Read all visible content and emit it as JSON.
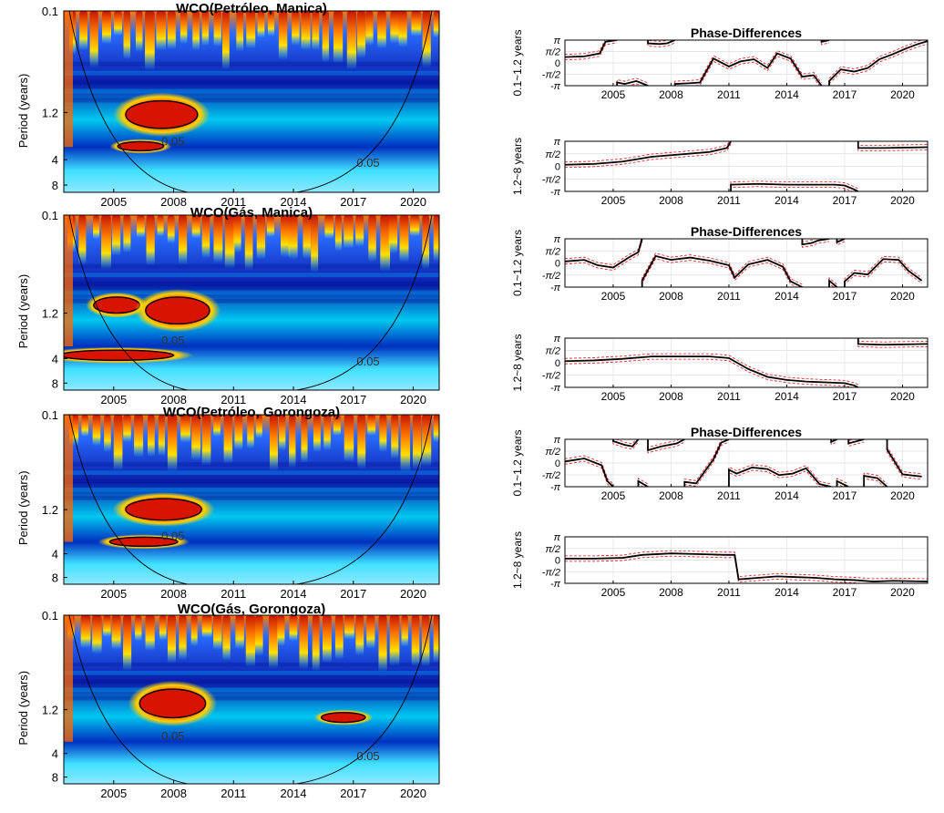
{
  "colors": {
    "wavelet_low": "#00008f",
    "wavelet_mid": "#00b0ff",
    "wavelet_warm": "#ffd400",
    "wavelet_high": "#d81400",
    "phase_line": "#000000",
    "phase_band": "#e01010",
    "cone": "#000000"
  },
  "wco_panels": [
    {
      "title": "WCO(Petróleo, Manica)",
      "ylabel": "Period (years)",
      "yticks": [
        "0.1",
        "1.2",
        "4",
        "8"
      ],
      "xticks": [
        "2005",
        "2008",
        "2011",
        "2014",
        "2017",
        "2020"
      ],
      "contour_labels": [
        "0.05",
        "0.05"
      ],
      "hot_regions": [
        {
          "x": [
            2005.6,
            2009.2
          ],
          "period": [
            0.9,
            1.8
          ]
        },
        {
          "x": [
            2005.2,
            2007.5
          ],
          "period": [
            2.6,
            3.1
          ]
        }
      ]
    },
    {
      "title": "WCO(Gás, Manica)",
      "ylabel": "Period (years)",
      "yticks": [
        "0.1",
        "1.2",
        "4",
        "8"
      ],
      "xticks": [
        "2005",
        "2008",
        "2011",
        "2014",
        "2017",
        "2020"
      ],
      "contour_labels": [
        "0.05",
        "0.05"
      ],
      "hot_regions": [
        {
          "x": [
            2004.0,
            2006.3
          ],
          "period": [
            0.8,
            1.2
          ]
        },
        {
          "x": [
            2006.6,
            2009.8
          ],
          "period": [
            0.8,
            1.6
          ]
        },
        {
          "x": [
            2002.3,
            2008.0
          ],
          "period": [
            3.2,
            4.2
          ]
        }
      ]
    },
    {
      "title": "WCO(Petróleo, Gorongoza)",
      "ylabel": "Period (years)",
      "yticks": [
        "0.1",
        "1.2",
        "4",
        "8"
      ],
      "xticks": [
        "2005",
        "2008",
        "2011",
        "2014",
        "2017",
        "2020"
      ],
      "contour_labels": [
        "0.05"
      ],
      "hot_regions": [
        {
          "x": [
            2005.6,
            2009.4
          ],
          "period": [
            0.9,
            1.6
          ]
        },
        {
          "x": [
            2004.8,
            2008.2
          ],
          "period": [
            2.6,
            3.2
          ]
        }
      ]
    },
    {
      "title": "WCO(Gás, Gorongoza)",
      "ylabel": "Period (years)",
      "yticks": [
        "0.1",
        "1.2",
        "4",
        "8"
      ],
      "xticks": [
        "2005",
        "2008",
        "2011",
        "2014",
        "2017",
        "2020"
      ],
      "contour_labels": [
        "0.05",
        "0.05"
      ],
      "hot_regions": [
        {
          "x": [
            2006.3,
            2009.6
          ],
          "period": [
            0.7,
            1.5
          ]
        },
        {
          "x": [
            2015.4,
            2017.6
          ],
          "period": [
            1.3,
            1.7
          ]
        }
      ]
    }
  ],
  "phase_panels": [
    {
      "title": "Phase-Differences",
      "ylabel": "0.1~1.2 years",
      "yticks": [
        "π",
        "π/2",
        "0",
        "-π/2",
        "-π"
      ],
      "xticks": [
        "2005",
        "2008",
        "2011",
        "2014",
        "2017",
        "2020"
      ],
      "series_x": [
        2002.5,
        2003.5,
        2004.3,
        2004.6,
        2005.2,
        2005.6,
        2006.2,
        2006.8,
        2007.4,
        2007.8,
        2008.2,
        2009.0,
        2009.5,
        2010.2,
        2011.0,
        2011.6,
        2012.3,
        2013.0,
        2013.5,
        2014.2,
        2014.8,
        2015.4,
        2015.8,
        2016.2,
        2016.8,
        2017.5,
        2018.2,
        2018.8,
        2019.5,
        2020.2,
        2020.8,
        2021.3
      ],
      "series_y": [
        0.8,
        0.9,
        1.3,
        2.9,
        -2.7,
        -2.9,
        -2.5,
        2.7,
        2.6,
        2.7,
        -2.9,
        -2.8,
        -2.7,
        0.6,
        -0.5,
        0.2,
        0.5,
        -0.7,
        1.3,
        0.6,
        -1.9,
        -1.7,
        2.9,
        -2.5,
        -0.9,
        -1.2,
        -0.7,
        0.5,
        1.2,
        2.0,
        2.6,
        3.0
      ]
    },
    {
      "title": "",
      "ylabel": "1.2~8 years",
      "yticks": [
        "π",
        "π/2",
        "0",
        "-π/2",
        "-π"
      ],
      "xticks": [
        "2005",
        "2008",
        "2011",
        "2014",
        "2017",
        "2020"
      ],
      "series_x": [
        2002.5,
        2004.0,
        2005.5,
        2007.0,
        2008.5,
        2010.0,
        2010.9,
        2011.1,
        2012.5,
        2014.0,
        2015.5,
        2016.5,
        2017.0,
        2017.5,
        2017.7,
        2019.0,
        2021.3
      ],
      "series_y": [
        0.2,
        0.3,
        0.6,
        1.2,
        1.5,
        1.8,
        2.3,
        -2.3,
        -2.2,
        -2.3,
        -2.3,
        -2.3,
        -2.4,
        -2.9,
        2.3,
        2.3,
        2.4
      ]
    },
    {
      "title": "Phase-Differences",
      "ylabel": "0.1~1.2 years",
      "yticks": [
        "π",
        "π/2",
        "0",
        "-π/2",
        "-π"
      ],
      "xticks": [
        "2005",
        "2008",
        "2011",
        "2014",
        "2017",
        "2020"
      ],
      "series_x": [
        2002.5,
        2003.5,
        2004.2,
        2005.0,
        2005.8,
        2006.3,
        2006.5,
        2007.2,
        2008.0,
        2009.0,
        2010.0,
        2011.0,
        2011.3,
        2012.0,
        2013.0,
        2013.8,
        2014.2,
        2014.8,
        2015.3,
        2015.6,
        2016.2,
        2016.6,
        2017.0,
        2017.5,
        2018.2,
        2019.0,
        2019.8,
        2020.3,
        2021.0
      ],
      "series_y": [
        0.2,
        0.4,
        -0.3,
        -0.6,
        0.7,
        1.4,
        -2.3,
        0.9,
        0.4,
        0.7,
        0.3,
        -0.3,
        -1.9,
        -0.2,
        0.4,
        -0.5,
        -2.4,
        2.4,
        2.6,
        2.9,
        -2.3,
        2.7,
        -2.4,
        -1.3,
        -1.5,
        0.5,
        0.4,
        -1.0,
        -2.3
      ]
    },
    {
      "title": "",
      "ylabel": "1.2~8 years",
      "yticks": [
        "π",
        "π/2",
        "0",
        "-π/2",
        "-π"
      ],
      "xticks": [
        "2005",
        "2008",
        "2011",
        "2014",
        "2017",
        "2020"
      ],
      "series_x": [
        2002.5,
        2004.0,
        2005.5,
        2007.0,
        2008.5,
        2010.0,
        2011.0,
        2012.0,
        2013.0,
        2014.0,
        2015.0,
        2016.0,
        2017.0,
        2017.5,
        2017.7,
        2019.0,
        2021.3
      ],
      "series_y": [
        0.2,
        0.3,
        0.5,
        0.8,
        0.8,
        0.8,
        0.6,
        -0.8,
        -1.8,
        -2.2,
        -2.4,
        -2.5,
        -2.6,
        -2.9,
        2.4,
        2.3,
        2.4
      ]
    },
    {
      "title": "Phase-Differences",
      "ylabel": "0.1~1.2 years",
      "yticks": [
        "π",
        "π/2",
        "0",
        "-π/2",
        "-π"
      ],
      "xticks": [
        "2005",
        "2008",
        "2011",
        "2014",
        "2017",
        "2020"
      ],
      "series_x": [
        2002.5,
        2003.5,
        2004.4,
        2004.7,
        2005.0,
        2005.6,
        2006.0,
        2006.3,
        2006.8,
        2007.5,
        2008.3,
        2008.7,
        2009.3,
        2010.2,
        2010.6,
        2011.0,
        2011.4,
        2012.2,
        2013.0,
        2013.6,
        2014.3,
        2015.0,
        2015.7,
        2016.3,
        2016.6,
        2017.2,
        2018.0,
        2018.7,
        2019.2,
        2020.0,
        2021.0
      ],
      "series_y": [
        0.2,
        0.6,
        -0.3,
        -2.4,
        2.9,
        2.4,
        2.2,
        -2.4,
        1.7,
        2.2,
        2.6,
        -2.5,
        -2.7,
        0.5,
        2.7,
        -0.9,
        -1.4,
        -0.6,
        -0.8,
        -1.6,
        -1.4,
        -0.7,
        -2.8,
        2.8,
        -2.4,
        2.6,
        -1.7,
        -2.0,
        1.8,
        -1.5,
        -1.8
      ]
    },
    {
      "title": "",
      "ylabel": "1.2~8 years",
      "yticks": [
        "π",
        "π/2",
        "0",
        "-π/2",
        "-π"
      ],
      "xticks": [
        "2005",
        "2008",
        "2011",
        "2014",
        "2017",
        "2020"
      ],
      "series_x": [
        2002.5,
        2004.0,
        2005.5,
        2006.5,
        2008.0,
        2009.5,
        2010.8,
        2011.3,
        2011.5,
        2012.5,
        2013.5,
        2014.5,
        2015.5,
        2016.5,
        2017.5,
        2018.5,
        2019.5,
        2021.3
      ],
      "series_y": [
        0.2,
        0.2,
        0.3,
        0.7,
        0.9,
        0.8,
        0.7,
        0.7,
        -2.6,
        -2.4,
        -2.2,
        -2.3,
        -2.4,
        -2.6,
        -2.7,
        -2.9,
        -2.8,
        -2.9
      ]
    }
  ],
  "chart_data": [
    {
      "type": "heatmap",
      "title": "WCO(Petróleo, Manica)",
      "ylabel": "Period (years)",
      "xlim": [
        2002.5,
        2021.3
      ],
      "yticks": [
        "0.1",
        "1.2",
        "4",
        "8"
      ],
      "xticks": [
        "2005",
        "2008",
        "2011",
        "2014",
        "2017",
        "2020"
      ],
      "contour_labels": [
        "0.05",
        "0.05"
      ]
    },
    {
      "type": "heatmap",
      "title": "WCO(Gás, Manica)",
      "ylabel": "Period (years)",
      "xlim": [
        2002.5,
        2021.3
      ],
      "yticks": [
        "0.1",
        "1.2",
        "4",
        "8"
      ],
      "xticks": [
        "2005",
        "2008",
        "2011",
        "2014",
        "2017",
        "2020"
      ],
      "contour_labels": [
        "0.05",
        "0.05"
      ]
    },
    {
      "type": "heatmap",
      "title": "WCO(Petróleo, Gorongoza)",
      "ylabel": "Period (years)",
      "xlim": [
        2002.5,
        2021.3
      ],
      "yticks": [
        "0.1",
        "1.2",
        "4",
        "8"
      ],
      "xticks": [
        "2005",
        "2008",
        "2011",
        "2014",
        "2017",
        "2020"
      ],
      "contour_labels": [
        "0.05"
      ]
    },
    {
      "type": "heatmap",
      "title": "WCO(Gás, Gorongoza)",
      "ylabel": "Period (years)",
      "xlim": [
        2002.5,
        2021.3
      ],
      "yticks": [
        "0.1",
        "1.2",
        "4",
        "8"
      ],
      "xticks": [
        "2005",
        "2008",
        "2011",
        "2014",
        "2017",
        "2020"
      ],
      "contour_labels": [
        "0.05",
        "0.05"
      ]
    },
    {
      "type": "line",
      "title": "Phase-Differences",
      "ylabel": "0.1~1.2 years",
      "xlim": [
        2002.5,
        2021.3
      ],
      "ylim": [
        -3.1416,
        3.1416
      ],
      "yticks": [
        "π",
        "π/2",
        "0",
        "-π/2",
        "-π"
      ],
      "xticks": [
        "2005",
        "2008",
        "2011",
        "2014",
        "2017",
        "2020"
      ]
    },
    {
      "type": "line",
      "title": "",
      "ylabel": "1.2~8 years",
      "xlim": [
        2002.5,
        2021.3
      ],
      "ylim": [
        -3.1416,
        3.1416
      ],
      "yticks": [
        "π",
        "π/2",
        "0",
        "-π/2",
        "-π"
      ],
      "xticks": [
        "2005",
        "2008",
        "2011",
        "2014",
        "2017",
        "2020"
      ]
    },
    {
      "type": "line",
      "title": "Phase-Differences",
      "ylabel": "0.1~1.2 years",
      "xlim": [
        2002.5,
        2021.3
      ],
      "ylim": [
        -3.1416,
        3.1416
      ],
      "yticks": [
        "π",
        "π/2",
        "0",
        "-π/2",
        "-π"
      ],
      "xticks": [
        "2005",
        "2008",
        "2011",
        "2014",
        "2017",
        "2020"
      ]
    },
    {
      "type": "line",
      "title": "",
      "ylabel": "1.2~8 years",
      "xlim": [
        2002.5,
        2021.3
      ],
      "ylim": [
        -3.1416,
        3.1416
      ],
      "yticks": [
        "π",
        "π/2",
        "0",
        "-π/2",
        "-π"
      ],
      "xticks": [
        "2005",
        "2008",
        "2011",
        "2014",
        "2017",
        "2020"
      ]
    },
    {
      "type": "line",
      "title": "Phase-Differences",
      "ylabel": "0.1~1.2 years",
      "xlim": [
        2002.5,
        2021.3
      ],
      "ylim": [
        -3.1416,
        3.1416
      ],
      "yticks": [
        "π",
        "π/2",
        "0",
        "-π/2",
        "-π"
      ],
      "xticks": [
        "2005",
        "2008",
        "2011",
        "2014",
        "2017",
        "2020"
      ]
    },
    {
      "type": "line",
      "title": "",
      "ylabel": "1.2~8 years",
      "xlim": [
        2002.5,
        2021.3
      ],
      "ylim": [
        -3.1416,
        3.1416
      ],
      "yticks": [
        "π",
        "π/2",
        "0",
        "-π/2",
        "-π"
      ],
      "xticks": [
        "2005",
        "2008",
        "2011",
        "2014",
        "2017",
        "2020"
      ]
    },
    {
      "type": "line",
      "title": "Phase-Differences",
      "ylabel": "0.1~1.2 years",
      "xlim": [
        2002.5,
        2021.3
      ],
      "ylim": [
        -3.1416,
        3.1416
      ],
      "yticks": [
        "π",
        "π/2",
        "0",
        "-π/2",
        "-π"
      ],
      "xticks": [
        "2005",
        "2008",
        "2011",
        "2014",
        "2017",
        "2020"
      ]
    },
    {
      "type": "line",
      "title": "",
      "ylabel": "1.2~8 years",
      "xlim": [
        2002.5,
        2021.3
      ],
      "ylim": [
        -3.1416,
        3.1416
      ],
      "yticks": [
        "π",
        "π/2",
        "0",
        "-π/2",
        "-π"
      ],
      "xticks": [
        "2005",
        "2008",
        "2011",
        "2014",
        "2017",
        "2020"
      ]
    }
  ]
}
